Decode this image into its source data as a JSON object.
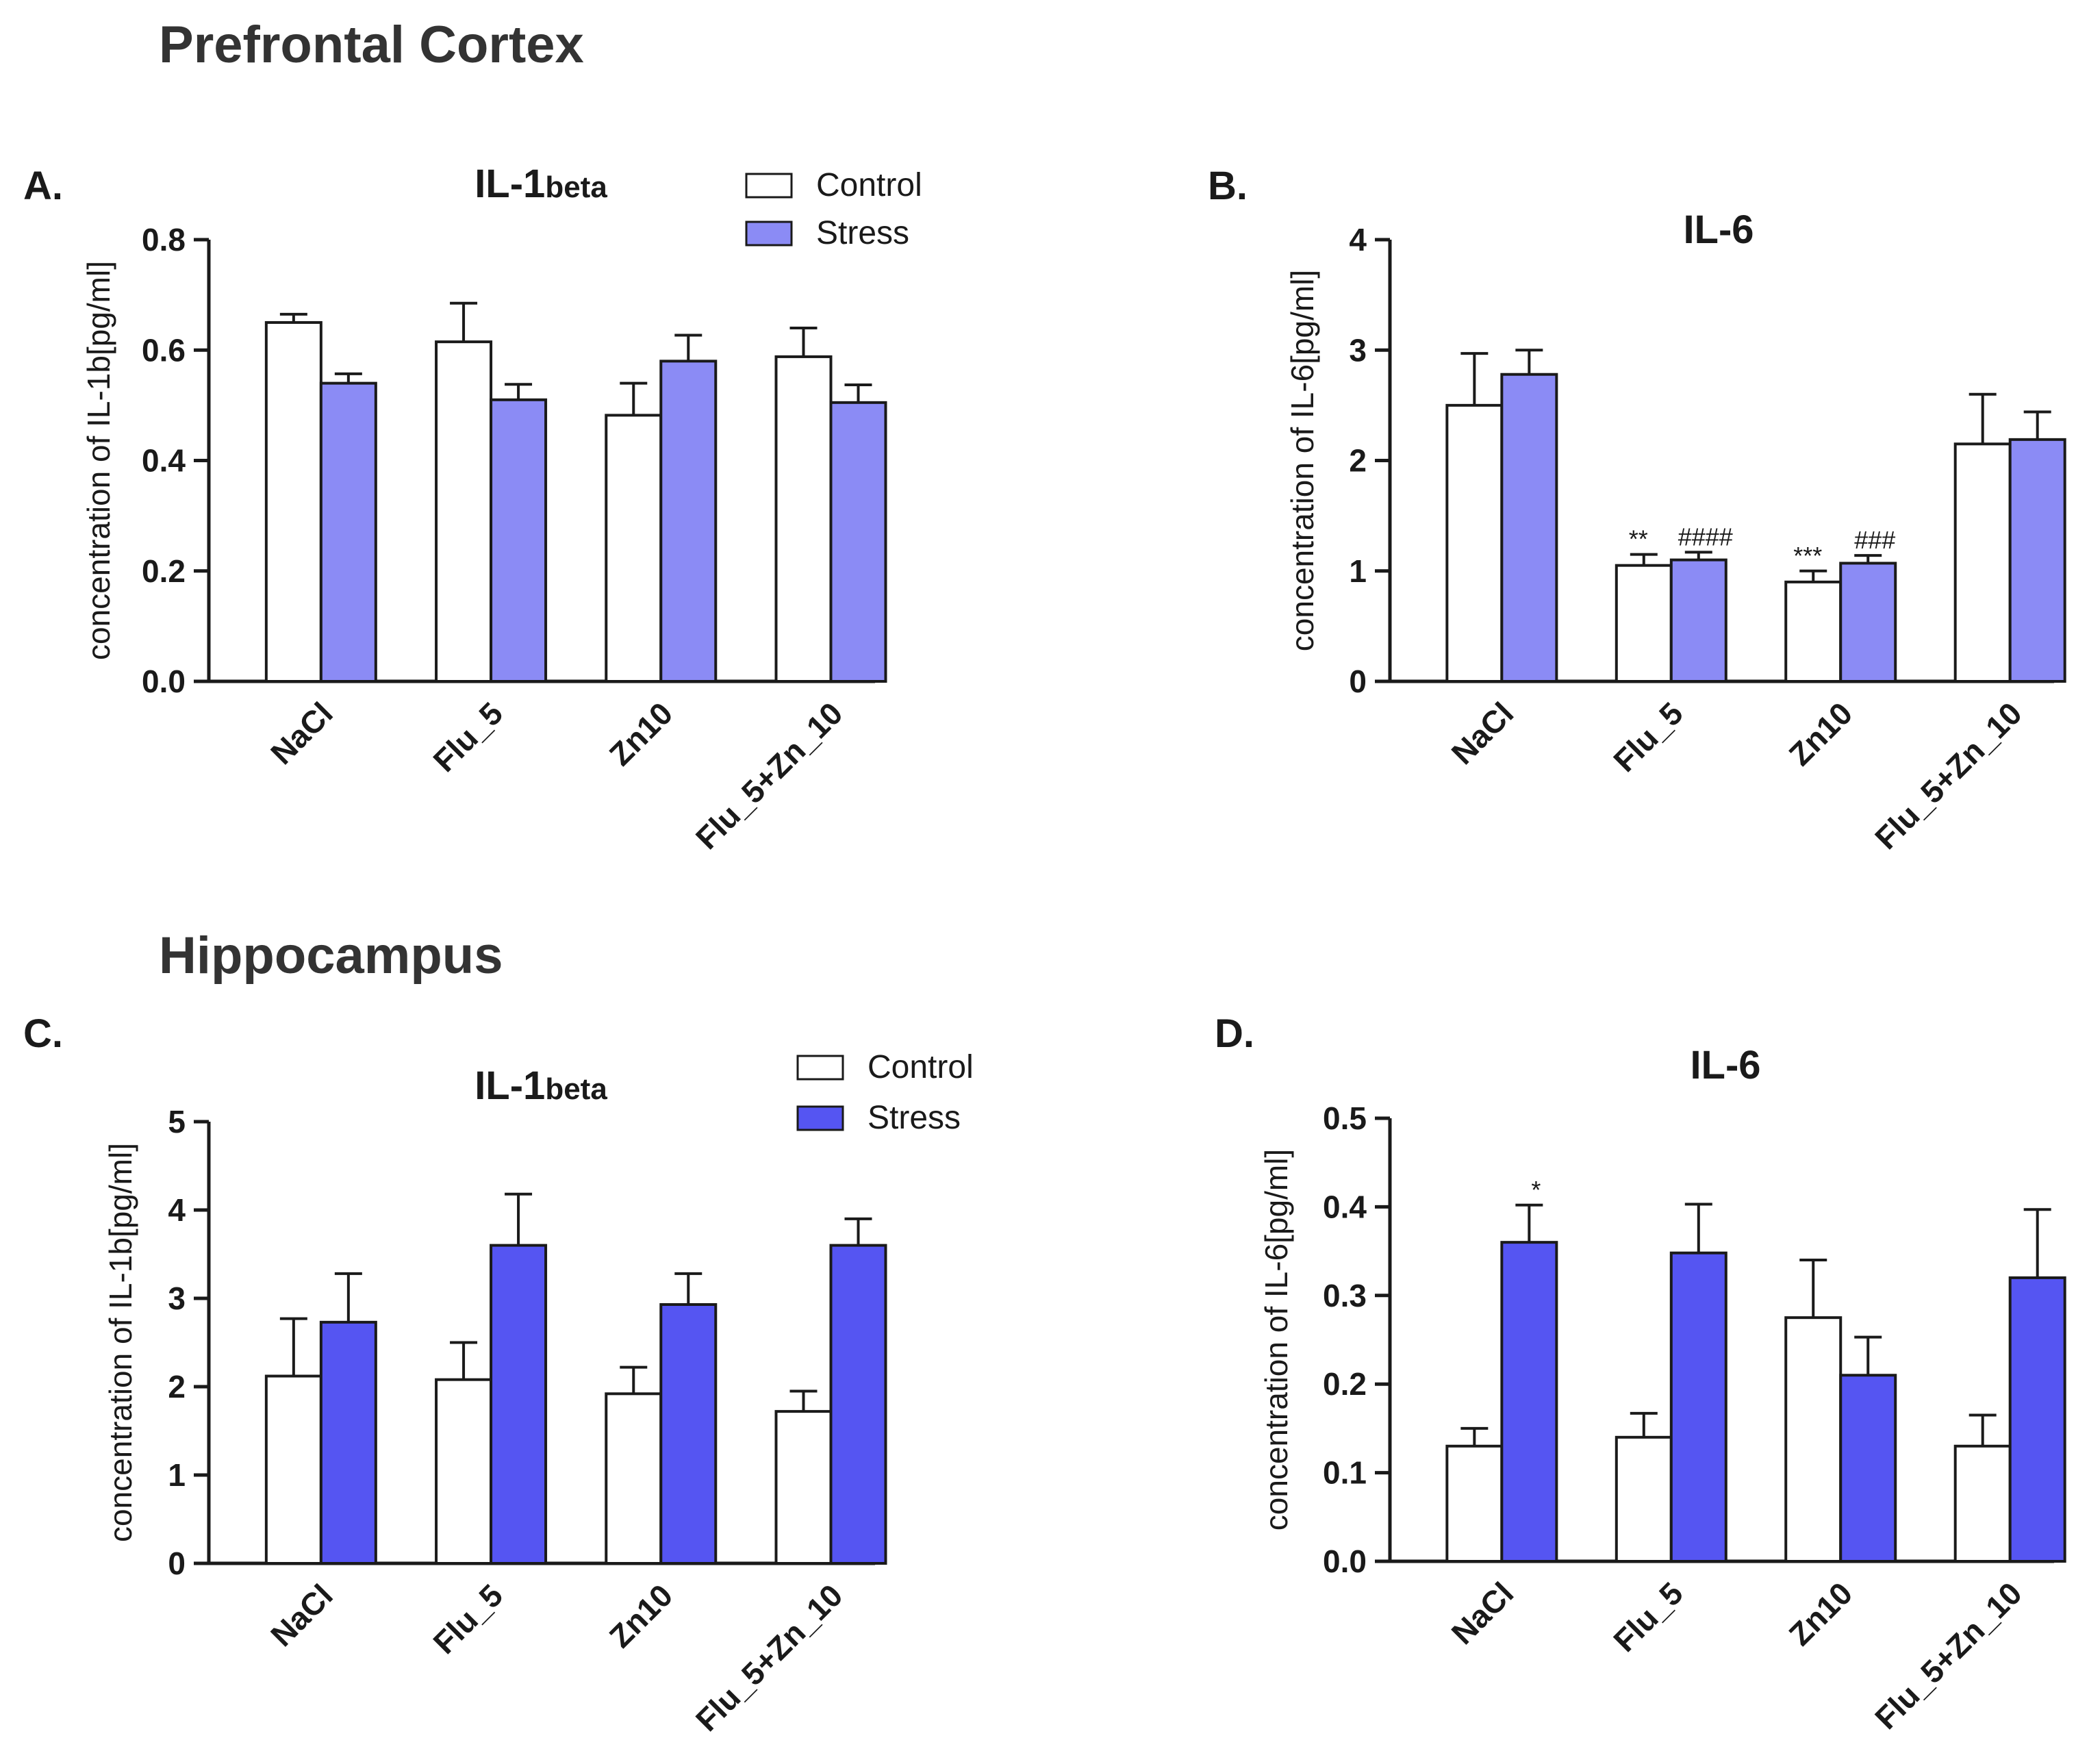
{
  "sections": {
    "top": "Prefrontal Cortex",
    "bottom": "Hippocampus"
  },
  "colors": {
    "control": "#ffffff",
    "stress_light": "#8b8bf5",
    "stress_dark": "#5555f2",
    "axis": "#1a1a1a"
  },
  "chart_data": [
    {
      "panel": "A.",
      "type": "bar",
      "title_main": "IL-1",
      "title_sub": "beta",
      "ylabel": "concentration of IL-1b[pg/ml]",
      "xlabel": "",
      "ylim": [
        0,
        0.8
      ],
      "yticks": [
        "0.0",
        "0.2",
        "0.4",
        "0.6",
        "0.8"
      ],
      "categories": [
        "NaCl",
        "Flu_5",
        "Zn10",
        "Flu_5+Zn_10"
      ],
      "series": [
        {
          "name": "Control",
          "values": [
            0.65,
            0.615,
            0.482,
            0.588
          ],
          "errors": [
            0.015,
            0.07,
            0.058,
            0.052
          ]
        },
        {
          "name": "Stress",
          "values": [
            0.54,
            0.51,
            0.58,
            0.505
          ],
          "errors": [
            0.017,
            0.028,
            0.047,
            0.032
          ]
        }
      ],
      "legend": {
        "labels": [
          "Control",
          "Stress"
        ],
        "placement": "top-right"
      },
      "annotations": []
    },
    {
      "panel": "B.",
      "type": "bar",
      "title_main": "IL-6",
      "title_sub": "",
      "ylabel": "concentration of  IL-6[pg/ml]",
      "xlabel": "",
      "ylim": [
        0,
        4
      ],
      "yticks": [
        "0",
        "1",
        "2",
        "3",
        "4"
      ],
      "categories": [
        "NaCl",
        "Flu_5",
        "Zn10",
        "Flu_5+Zn_10"
      ],
      "series": [
        {
          "name": "Control",
          "values": [
            2.5,
            1.05,
            0.9,
            2.15
          ],
          "errors": [
            0.47,
            0.1,
            0.1,
            0.45
          ]
        },
        {
          "name": "Stress",
          "values": [
            2.78,
            1.1,
            1.07,
            2.19
          ],
          "errors": [
            0.22,
            0.07,
            0.07,
            0.25
          ]
        }
      ],
      "legend": null,
      "annotations": [
        {
          "text": "**",
          "category": 1,
          "series": 0
        },
        {
          "text": "####",
          "category": 1,
          "series": 1
        },
        {
          "text": "***",
          "category": 2,
          "series": 0
        },
        {
          "text": "###",
          "category": 2,
          "series": 1
        }
      ]
    },
    {
      "panel": "C.",
      "type": "bar",
      "title_main": "IL-1",
      "title_sub": "beta",
      "ylabel": "concentration of IL-1b[pg/ml]",
      "xlabel": "",
      "ylim": [
        0,
        5
      ],
      "yticks": [
        "0",
        "1",
        "2",
        "3",
        "4",
        "5"
      ],
      "categories": [
        "NaCl",
        "Flu_5",
        "Zn10",
        "Flu_5+Zn_10"
      ],
      "series": [
        {
          "name": "Control",
          "values": [
            2.12,
            2.08,
            1.92,
            1.72
          ],
          "errors": [
            0.65,
            0.42,
            0.3,
            0.23
          ]
        },
        {
          "name": "Stress",
          "values": [
            2.73,
            3.6,
            2.93,
            3.6
          ],
          "errors": [
            0.55,
            0.58,
            0.35,
            0.3
          ]
        }
      ],
      "legend": {
        "labels": [
          "Control",
          "Stress"
        ],
        "placement": "top-right"
      },
      "annotations": []
    },
    {
      "panel": "D.",
      "type": "bar",
      "title_main": "IL-6",
      "title_sub": "",
      "ylabel": "concentration of IL-6[pg/ml]",
      "xlabel": "",
      "ylim": [
        0,
        0.5
      ],
      "yticks": [
        "0.0",
        "0.1",
        "0.2",
        "0.3",
        "0.4",
        "0.5"
      ],
      "categories": [
        "NaCl",
        "Flu_5",
        "Zn10",
        "Flu_5+Zn_10"
      ],
      "series": [
        {
          "name": "Control",
          "values": [
            0.13,
            0.14,
            0.275,
            0.13
          ],
          "errors": [
            0.02,
            0.027,
            0.065,
            0.035
          ]
        },
        {
          "name": "Stress",
          "values": [
            0.36,
            0.348,
            0.21,
            0.32
          ],
          "errors": [
            0.042,
            0.055,
            0.043,
            0.077
          ]
        }
      ],
      "legend": null,
      "annotations": [
        {
          "text": "*",
          "category": 0,
          "series": 1
        }
      ]
    }
  ]
}
